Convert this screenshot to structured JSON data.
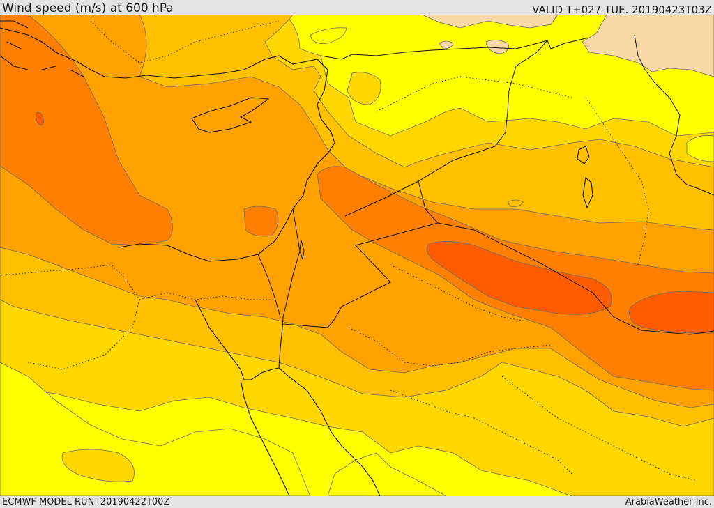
{
  "header": {
    "title": "Wind speed (m/s) at 600 hPa",
    "valid": "VALID T+027 TUE. 20190423T03Z"
  },
  "footer": {
    "model_run": "ECMWF MODEL RUN: 20190422T00Z",
    "credit": "ArabiaWeather Inc."
  },
  "map": {
    "variable": "wind speed",
    "unit": "m/s",
    "level": "600 hPa",
    "colors": {
      "band_1": "#f9d8a8",
      "band_2": "#ffff00",
      "band_3": "#ffd700",
      "band_4": "#ffc000",
      "band_5": "#ffa200",
      "band_6": "#ff8000",
      "band_7": "#ff5c00"
    }
  }
}
